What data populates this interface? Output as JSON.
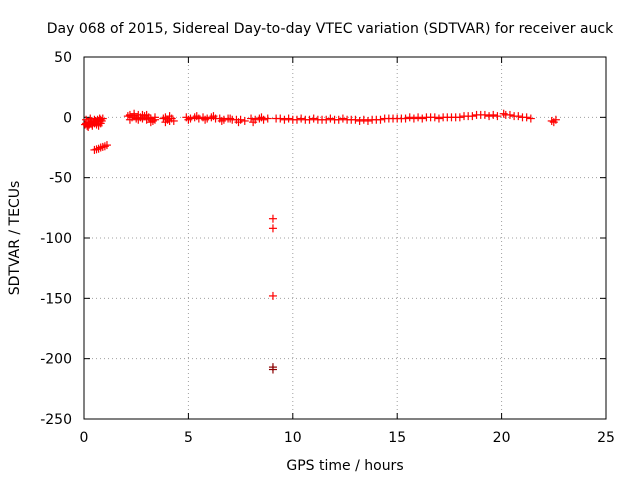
{
  "chart_data": {
    "type": "scatter",
    "title": "Day 068 of 2015, Sidereal Day-to-day VTEC variation (SDTVAR) for receiver auck",
    "xlabel": "GPS time / hours",
    "ylabel": "SDTVAR / TECUs",
    "xlim": [
      0,
      25
    ],
    "ylim": [
      -250,
      50
    ],
    "xticks": [
      0,
      5,
      10,
      15,
      20,
      25
    ],
    "yticks": [
      50,
      0,
      -50,
      -100,
      -150,
      -200,
      -250
    ],
    "xtick_labels": [
      "0",
      "5",
      "10",
      "15",
      "20",
      "25"
    ],
    "ytick_labels": [
      "50",
      "0",
      "-50",
      "-100",
      "-150",
      "-200",
      "-250"
    ],
    "grid": true,
    "marker": "+",
    "color": "#ff0000",
    "series": [
      {
        "points": [
          [
            0.05,
            -6
          ],
          [
            0.1,
            -5
          ],
          [
            0.15,
            -7
          ],
          [
            0.2,
            -4
          ],
          [
            0.25,
            -6
          ],
          [
            0.3,
            -5
          ],
          [
            0.35,
            -3
          ],
          [
            0.4,
            -6
          ],
          [
            0.45,
            -4
          ],
          [
            0.5,
            -5
          ],
          [
            0.55,
            -3
          ],
          [
            0.6,
            -4
          ],
          [
            0.65,
            -2
          ],
          [
            0.7,
            -3
          ],
          [
            0.75,
            -1
          ],
          [
            0.8,
            -2
          ],
          [
            0.85,
            -3
          ],
          [
            0.9,
            -1
          ],
          [
            0.1,
            -2
          ],
          [
            0.2,
            -8
          ],
          [
            0.3,
            -1
          ],
          [
            0.4,
            -7
          ],
          [
            0.5,
            -2
          ],
          [
            0.6,
            -6
          ],
          [
            0.7,
            -7
          ],
          [
            0.8,
            -5
          ],
          [
            0.5,
            -27
          ],
          [
            0.6,
            -26.5
          ],
          [
            0.7,
            -26
          ],
          [
            0.8,
            -25
          ],
          [
            0.9,
            -24.5
          ],
          [
            1.0,
            -24
          ],
          [
            1.1,
            -23
          ],
          [
            2.1,
            1
          ],
          [
            2.2,
            2
          ],
          [
            2.3,
            0
          ],
          [
            2.4,
            1
          ],
          [
            2.5,
            -1
          ],
          [
            2.6,
            2
          ],
          [
            2.7,
            0
          ],
          [
            2.8,
            -1
          ],
          [
            2.9,
            1
          ],
          [
            3.0,
            -2
          ],
          [
            3.1,
            0
          ],
          [
            3.2,
            -1
          ],
          [
            3.3,
            -3
          ],
          [
            3.4,
            -2
          ],
          [
            2.2,
            -2
          ],
          [
            2.4,
            3
          ],
          [
            2.6,
            -2
          ],
          [
            2.8,
            2
          ],
          [
            3.0,
            2
          ],
          [
            3.2,
            -4
          ],
          [
            3.4,
            0
          ],
          [
            3.8,
            -1
          ],
          [
            3.9,
            0
          ],
          [
            4.0,
            -2
          ],
          [
            4.1,
            1
          ],
          [
            4.2,
            -1
          ],
          [
            4.3,
            -3
          ],
          [
            3.9,
            -4
          ],
          [
            4.1,
            -3
          ],
          [
            4.9,
            0
          ],
          [
            5.1,
            -1
          ],
          [
            5.3,
            0
          ],
          [
            5.5,
            -1
          ],
          [
            5.7,
            0
          ],
          [
            5.9,
            -1
          ],
          [
            6.1,
            0
          ],
          [
            6.3,
            -1
          ],
          [
            6.5,
            -1
          ],
          [
            6.7,
            -2
          ],
          [
            6.9,
            -1
          ],
          [
            7.1,
            -2
          ],
          [
            7.3,
            -2
          ],
          [
            7.5,
            -2
          ],
          [
            7.7,
            -3
          ],
          [
            5.0,
            -2
          ],
          [
            5.4,
            1
          ],
          [
            5.8,
            -2
          ],
          [
            6.2,
            1
          ],
          [
            6.6,
            -3
          ],
          [
            7.0,
            -1
          ],
          [
            7.4,
            -4
          ],
          [
            8.0,
            -1
          ],
          [
            8.2,
            -2
          ],
          [
            8.4,
            -1
          ],
          [
            8.6,
            -2
          ],
          [
            8.8,
            -1
          ],
          [
            8.1,
            -4
          ],
          [
            8.5,
            0
          ],
          [
            9.2,
            -1
          ],
          [
            9.4,
            -1
          ],
          [
            9.6,
            -2
          ],
          [
            9.8,
            -1
          ],
          [
            10.0,
            -2
          ],
          [
            10.2,
            -2
          ],
          [
            10.4,
            -1
          ],
          [
            10.6,
            -2
          ],
          [
            10.8,
            -2
          ],
          [
            11.0,
            -1
          ],
          [
            11.2,
            -2
          ],
          [
            11.4,
            -2
          ],
          [
            11.6,
            -2
          ],
          [
            11.8,
            -1
          ],
          [
            12.0,
            -2
          ],
          [
            12.2,
            -2
          ],
          [
            12.4,
            -1
          ],
          [
            12.6,
            -2
          ],
          [
            12.8,
            -2
          ],
          [
            13.0,
            -2
          ],
          [
            13.2,
            -3
          ],
          [
            13.4,
            -2
          ],
          [
            13.6,
            -3
          ],
          [
            13.8,
            -2
          ],
          [
            14.0,
            -2
          ],
          [
            14.2,
            -2
          ],
          [
            14.4,
            -1
          ],
          [
            14.6,
            -1
          ],
          [
            14.8,
            -1
          ],
          [
            15.0,
            -1
          ],
          [
            15.2,
            -1
          ],
          [
            15.4,
            -1
          ],
          [
            15.6,
            0
          ],
          [
            15.8,
            -1
          ],
          [
            16.0,
            0
          ],
          [
            16.2,
            -1
          ],
          [
            16.4,
            0
          ],
          [
            16.6,
            0
          ],
          [
            16.8,
            0
          ],
          [
            17.0,
            -1
          ],
          [
            17.2,
            0
          ],
          [
            17.4,
            0
          ],
          [
            17.6,
            0
          ],
          [
            17.8,
            0
          ],
          [
            18.0,
            0
          ],
          [
            18.2,
            1
          ],
          [
            18.4,
            1
          ],
          [
            18.6,
            1
          ],
          [
            18.8,
            2
          ],
          [
            19.0,
            2
          ],
          [
            19.2,
            2
          ],
          [
            19.4,
            1
          ],
          [
            19.6,
            2
          ],
          [
            19.8,
            1
          ],
          [
            20.1,
            3
          ],
          [
            20.2,
            2
          ],
          [
            20.4,
            2
          ],
          [
            20.6,
            1
          ],
          [
            20.8,
            1
          ],
          [
            21.0,
            0
          ],
          [
            21.2,
            0
          ],
          [
            21.4,
            -1
          ],
          [
            22.4,
            -3
          ],
          [
            22.5,
            -4
          ],
          [
            22.6,
            -2
          ],
          [
            9.05,
            -84
          ],
          [
            9.05,
            -92
          ],
          [
            9.05,
            -148
          ],
          [
            9.05,
            -207
          ],
          [
            9.05,
            -209
          ]
        ]
      }
    ]
  }
}
